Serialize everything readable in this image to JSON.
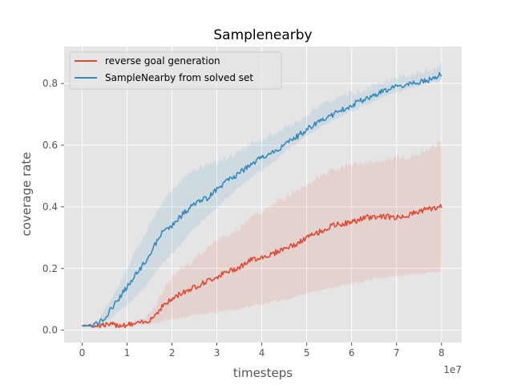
{
  "chart_data": {
    "type": "line",
    "title": "Samplenearby",
    "xlabel": "timesteps",
    "ylabel": "coverage rate",
    "x_offset_label": "1e7",
    "xlim": [
      -4000000,
      84500000
    ],
    "ylim": [
      -0.04,
      0.92
    ],
    "xticks": [
      0,
      10000000,
      20000000,
      30000000,
      40000000,
      50000000,
      60000000,
      70000000,
      80000000
    ],
    "xtick_labels": [
      "0",
      "1",
      "2",
      "3",
      "4",
      "5",
      "6",
      "7",
      "8"
    ],
    "yticks": [
      0.0,
      0.2,
      0.4,
      0.6,
      0.8
    ],
    "ytick_labels": [
      "0.0",
      "0.2",
      "0.4",
      "0.6",
      "0.8"
    ],
    "grid": true,
    "legend_position": "top-left",
    "series": [
      {
        "name": "reverse goal generation",
        "color": "#e24a33",
        "x": [
          0,
          5000000,
          10000000,
          14000000,
          16000000,
          18000000,
          20000000,
          22000000,
          25000000,
          28000000,
          31000000,
          35000000,
          38000000,
          42000000,
          45000000,
          48000000,
          50000000,
          53000000,
          56000000,
          60000000,
          63000000,
          67000000,
          70000000,
          73000000,
          76000000,
          80000000
        ],
        "y": [
          0.015,
          0.017,
          0.017,
          0.025,
          0.045,
          0.08,
          0.1,
          0.12,
          0.14,
          0.16,
          0.18,
          0.205,
          0.23,
          0.245,
          0.265,
          0.28,
          0.3,
          0.32,
          0.34,
          0.35,
          0.365,
          0.37,
          0.365,
          0.375,
          0.39,
          0.4
        ],
        "lower": [
          0.015,
          0.016,
          0.016,
          0.018,
          0.022,
          0.03,
          0.035,
          0.04,
          0.05,
          0.055,
          0.06,
          0.07,
          0.08,
          0.09,
          0.1,
          0.11,
          0.12,
          0.13,
          0.14,
          0.15,
          0.16,
          0.17,
          0.175,
          0.18,
          0.185,
          0.19
        ],
        "upper": [
          0.015,
          0.018,
          0.02,
          0.035,
          0.07,
          0.13,
          0.17,
          0.2,
          0.23,
          0.27,
          0.3,
          0.33,
          0.37,
          0.4,
          0.43,
          0.45,
          0.47,
          0.5,
          0.52,
          0.54,
          0.54,
          0.55,
          0.56,
          0.56,
          0.58,
          0.61
        ]
      },
      {
        "name": "SampleNearby from solved set",
        "color": "#348abd",
        "x": [
          0,
          2000000,
          4000000,
          6000000,
          8000000,
          10000000,
          12000000,
          14000000,
          16000000,
          18000000,
          20000000,
          22000000,
          25000000,
          28000000,
          31000000,
          34000000,
          37000000,
          40000000,
          43000000,
          46000000,
          50000000,
          53000000,
          56000000,
          60000000,
          63000000,
          66000000,
          70000000,
          74000000,
          77000000,
          80000000
        ],
        "y": [
          0.015,
          0.015,
          0.025,
          0.06,
          0.1,
          0.14,
          0.18,
          0.22,
          0.27,
          0.32,
          0.34,
          0.37,
          0.41,
          0.43,
          0.47,
          0.5,
          0.53,
          0.56,
          0.58,
          0.61,
          0.65,
          0.68,
          0.7,
          0.73,
          0.75,
          0.77,
          0.79,
          0.8,
          0.81,
          0.83
        ],
        "lower": [
          0.015,
          0.014,
          0.018,
          0.035,
          0.06,
          0.08,
          0.11,
          0.14,
          0.18,
          0.22,
          0.25,
          0.28,
          0.33,
          0.37,
          0.41,
          0.45,
          0.49,
          0.52,
          0.55,
          0.59,
          0.63,
          0.66,
          0.68,
          0.71,
          0.73,
          0.75,
          0.77,
          0.79,
          0.8,
          0.81
        ],
        "upper": [
          0.015,
          0.017,
          0.035,
          0.09,
          0.14,
          0.2,
          0.26,
          0.31,
          0.37,
          0.42,
          0.45,
          0.49,
          0.52,
          0.54,
          0.55,
          0.57,
          0.6,
          0.62,
          0.64,
          0.66,
          0.7,
          0.73,
          0.75,
          0.77,
          0.78,
          0.8,
          0.82,
          0.83,
          0.84,
          0.86
        ]
      }
    ]
  }
}
